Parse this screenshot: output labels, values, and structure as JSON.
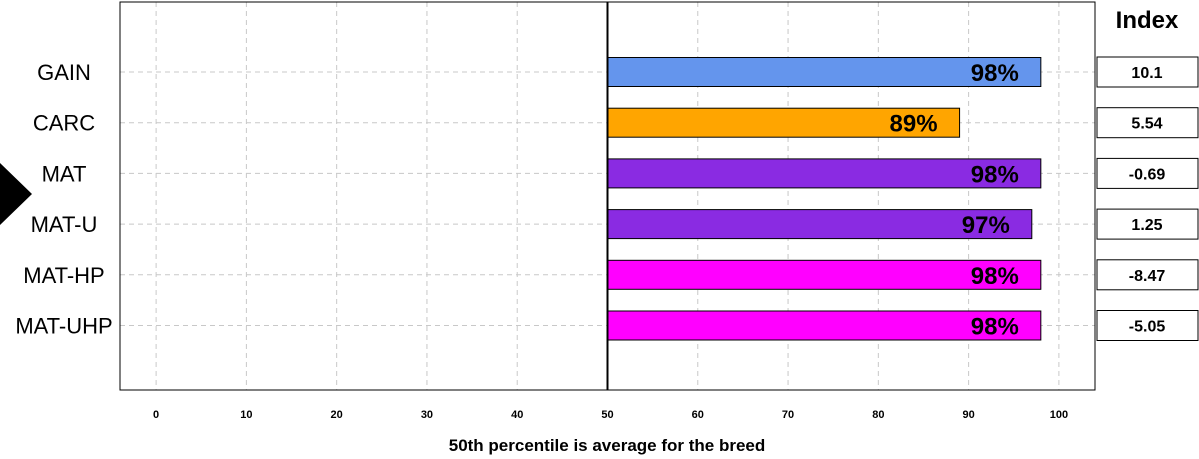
{
  "chart_data": {
    "type": "bar",
    "orientation": "horizontal",
    "categories": [
      "GAIN",
      "CARC",
      "MAT",
      "MAT-U",
      "MAT-HP",
      "MAT-UHP"
    ],
    "values": [
      98,
      89,
      98,
      97,
      98,
      98
    ],
    "bar_labels": [
      "98%",
      "89%",
      "98%",
      "97%",
      "98%",
      "98%"
    ],
    "bar_colors": [
      "#6495ED",
      "#FFA500",
      "#8A2BE2",
      "#8A2BE2",
      "#FF00FF",
      "#FF00FF"
    ],
    "baseline": 50,
    "xlabel": "50th percentile is average for the breed",
    "xlim": [
      -4,
      104
    ],
    "xticks": [
      "0",
      "10",
      "20",
      "30",
      "40",
      "50",
      "60",
      "70",
      "80",
      "90",
      "100"
    ],
    "grid": true,
    "index_title": "Index",
    "index_values": [
      "10.1",
      "5.54",
      "-0.69",
      "1.25",
      "-8.47",
      "-5.05"
    ],
    "selected_category": "MAT"
  }
}
